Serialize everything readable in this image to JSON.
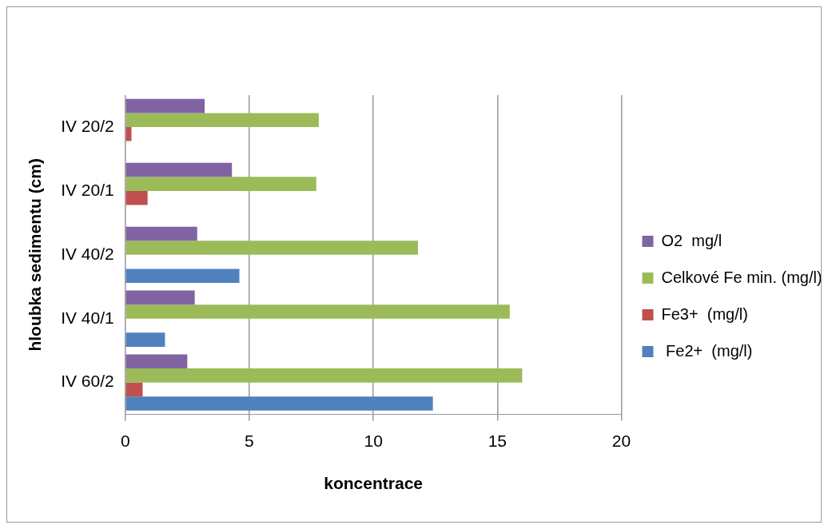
{
  "chart_data": {
    "type": "bar",
    "orientation": "horizontal",
    "xlabel": "koncentrace",
    "ylabel": "hloubka sedimentu (cm)",
    "categories": [
      "IV 20/2",
      "IV 20/1",
      "IV 40/2",
      "IV 40/1",
      "IV 60/2"
    ],
    "series": [
      {
        "name": "O2  mg/l",
        "color": "#8064a2",
        "values": [
          3.2,
          4.3,
          2.9,
          2.8,
          2.5
        ]
      },
      {
        "name": "Celkové Fe min. (mg/l)",
        "color": "#9bbb59",
        "values": [
          7.8,
          7.7,
          11.8,
          15.5,
          16.0
        ]
      },
      {
        "name": "Fe3+  (mg/l)",
        "color": "#c0504d",
        "values": [
          0.25,
          0.9,
          null,
          null,
          0.7
        ]
      },
      {
        "name": " Fe2+  (mg/l)",
        "color": "#4f81bd",
        "values": [
          null,
          null,
          4.6,
          1.6,
          12.4
        ]
      }
    ],
    "xlim": [
      0,
      20
    ],
    "xticks": [
      0,
      5,
      10,
      15,
      20
    ],
    "grid": "x",
    "legend": "right"
  }
}
